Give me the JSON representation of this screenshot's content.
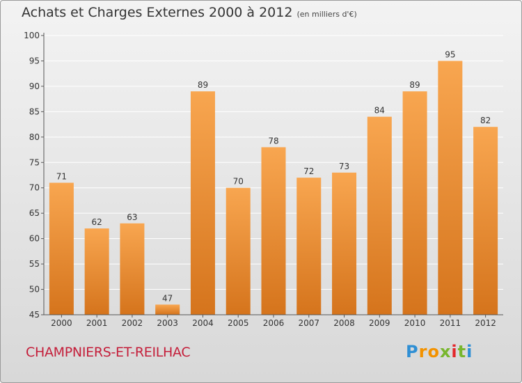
{
  "title": "Achats et Charges Externes 2000 à 2012",
  "title_unit": "(en milliers d'€)",
  "commune": "CHAMPNIERS-ET-REILHAC",
  "logo": {
    "letters": [
      "P",
      "r",
      "o",
      "x",
      "i",
      "t",
      "i"
    ],
    "colors": [
      "#2f8fd4",
      "#f39200",
      "#f39200",
      "#78b62d",
      "#e3262a",
      "#78b62d",
      "#2f8fd4"
    ]
  },
  "colors": {
    "bar_light": "#f8a650",
    "bar_dark": "#d5741c",
    "grid": "#ffffff"
  },
  "chart_data": {
    "type": "bar",
    "title": "Achats et Charges Externes 2000 à 2012",
    "categories": [
      "2000",
      "2001",
      "2002",
      "2003",
      "2004",
      "2005",
      "2006",
      "2007",
      "2008",
      "2009",
      "2010",
      "2011",
      "2012"
    ],
    "values": [
      71,
      62,
      63,
      47,
      89,
      70,
      78,
      72,
      73,
      84,
      89,
      95,
      82
    ],
    "ylim": [
      45,
      100
    ],
    "yticks": [
      45,
      50,
      55,
      60,
      65,
      70,
      75,
      80,
      85,
      90,
      95,
      100
    ],
    "xlabel": "",
    "ylabel": "",
    "grid": true
  }
}
